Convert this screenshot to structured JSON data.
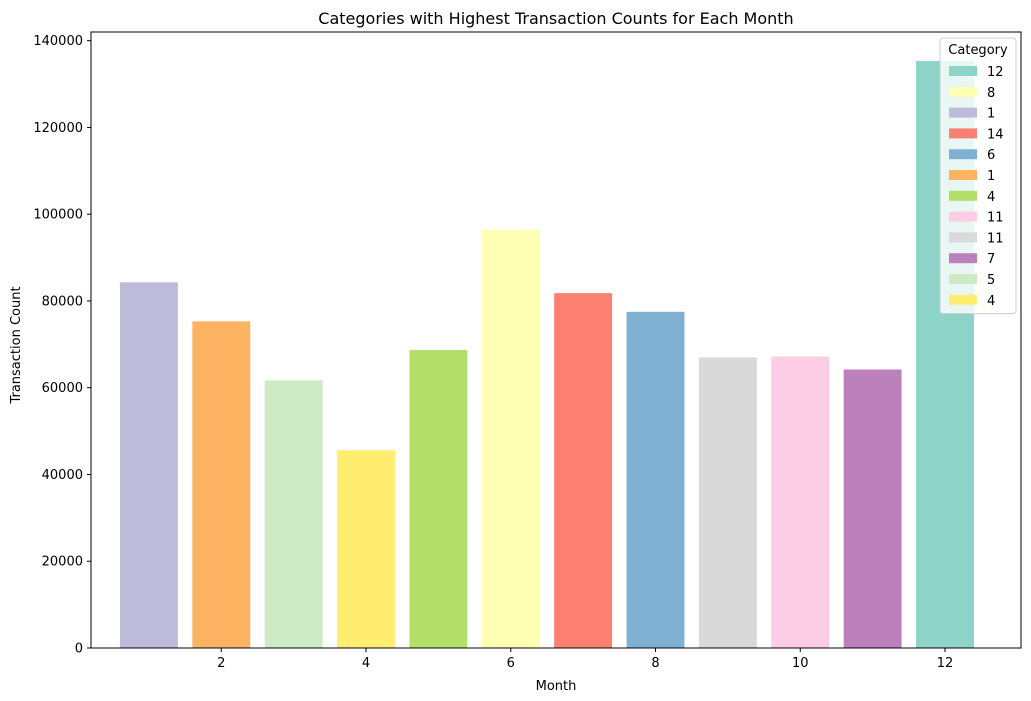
{
  "chart_data": {
    "type": "bar",
    "title": "Categories with Highest Transaction Counts for Each Month",
    "xlabel": "Month",
    "ylabel": "Transaction Count",
    "xlim": [
      0.2,
      13.05
    ],
    "ylim": [
      0,
      142000
    ],
    "x_ticks": [
      2,
      4,
      6,
      8,
      10,
      12
    ],
    "y_ticks": [
      0,
      20000,
      40000,
      60000,
      80000,
      100000,
      120000,
      140000
    ],
    "grid": false,
    "bars": [
      {
        "month": 1,
        "value": 84300,
        "color": "#bebada"
      },
      {
        "month": 2,
        "value": 75300,
        "color": "#fdb462"
      },
      {
        "month": 3,
        "value": 61700,
        "color": "#ccebc5"
      },
      {
        "month": 4,
        "value": 45600,
        "color": "#ffed6f"
      },
      {
        "month": 5,
        "value": 68700,
        "color": "#b3de69"
      },
      {
        "month": 6,
        "value": 96400,
        "color": "#ffffb3"
      },
      {
        "month": 7,
        "value": 81800,
        "color": "#fb8072"
      },
      {
        "month": 8,
        "value": 77500,
        "color": "#80b1d3"
      },
      {
        "month": 9,
        "value": 67000,
        "color": "#d9d9d9"
      },
      {
        "month": 10,
        "value": 67200,
        "color": "#fccde5"
      },
      {
        "month": 11,
        "value": 64200,
        "color": "#bc80bd"
      },
      {
        "month": 12,
        "value": 135300,
        "color": "#8dd3c7"
      }
    ],
    "legend": {
      "title": "Category",
      "placement": "top-right",
      "entries": [
        {
          "label": "12",
          "color": "#8dd3c7"
        },
        {
          "label": "8",
          "color": "#ffffb3"
        },
        {
          "label": "1",
          "color": "#bebada"
        },
        {
          "label": "14",
          "color": "#fb8072"
        },
        {
          "label": "6",
          "color": "#80b1d3"
        },
        {
          "label": "1",
          "color": "#fdb462"
        },
        {
          "label": "4",
          "color": "#b3de69"
        },
        {
          "label": "11",
          "color": "#fccde5"
        },
        {
          "label": "11",
          "color": "#d9d9d9"
        },
        {
          "label": "7",
          "color": "#bc80bd"
        },
        {
          "label": "5",
          "color": "#ccebc5"
        },
        {
          "label": "4",
          "color": "#ffed6f"
        }
      ]
    }
  }
}
